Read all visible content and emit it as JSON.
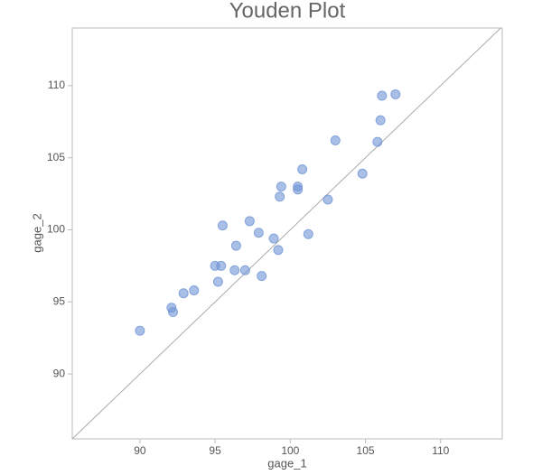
{
  "chart_data": {
    "type": "scatter",
    "title": "Youden Plot",
    "x_label": "gage_1",
    "y_label": "gage_2",
    "x": [
      90.0,
      92.1,
      92.2,
      92.9,
      93.6,
      95.0,
      95.4,
      95.2,
      95.5,
      96.3,
      96.4,
      97.0,
      97.3,
      97.9,
      98.1,
      98.9,
      99.2,
      99.3,
      99.4,
      100.5,
      100.5,
      100.8,
      101.2,
      102.5,
      103.0,
      104.8,
      105.8,
      106.0,
      106.1,
      107.0
    ],
    "values": [
      93.0,
      94.6,
      94.3,
      95.6,
      95.8,
      97.5,
      97.5,
      96.4,
      100.3,
      97.2,
      98.9,
      97.2,
      100.6,
      99.8,
      96.8,
      99.4,
      98.6,
      102.3,
      103.0,
      103.0,
      102.8,
      104.2,
      99.7,
      102.1,
      106.2,
      103.9,
      106.1,
      107.6,
      109.3,
      109.4
    ],
    "color": "#6f95d6",
    "xlim": [
      85.5,
      114.1
    ],
    "ylim": [
      85.5,
      114
    ],
    "xticks": [
      90,
      95,
      100,
      105,
      110
    ],
    "yticks": [
      90,
      95,
      100,
      105,
      110
    ],
    "identity_line": true
  }
}
